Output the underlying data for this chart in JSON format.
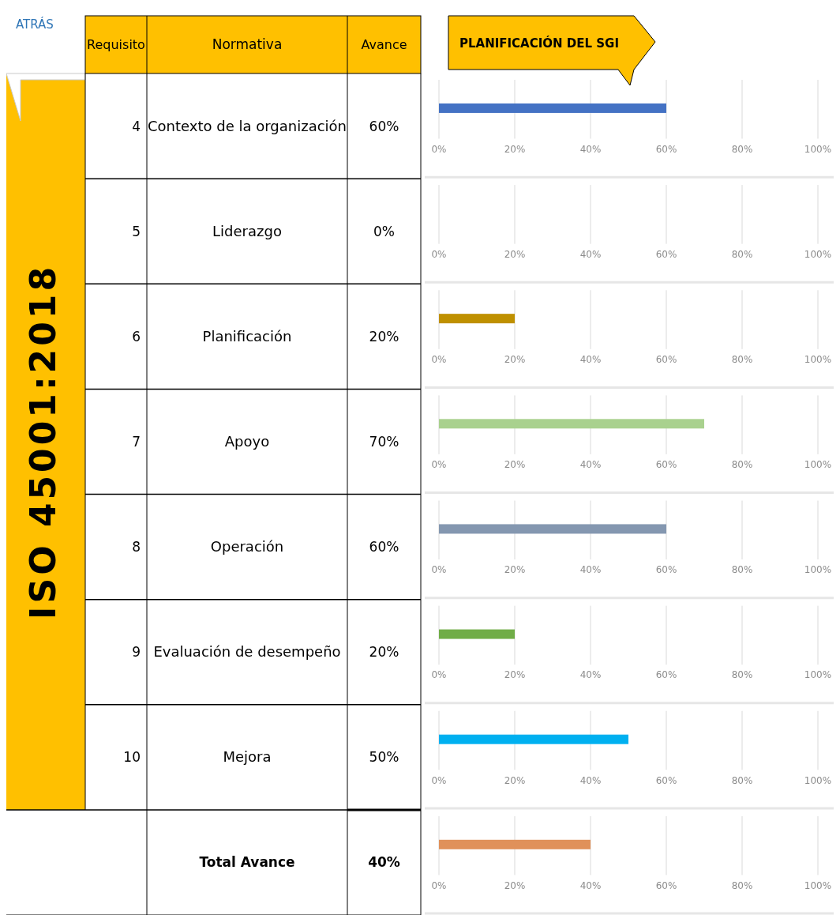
{
  "chart_data": {
    "type": "bar",
    "orientation": "horizontal",
    "title": "PLANIFICACIÓN DEL SGI",
    "subtitle": "ISO 45001:2018",
    "ylabel": "Normativa",
    "categories": [
      "Contexto de la organización",
      "Liderazgo",
      "Planificación",
      "Apoyo",
      "Operación",
      "Evaluación de desempeño",
      "Mejora",
      "Total Avance"
    ],
    "values": [
      60,
      0,
      20,
      70,
      60,
      20,
      50,
      40
    ],
    "colors": [
      "#4472c4",
      "#ed7d31",
      "#bf9000",
      "#a9d18e",
      "#8497b0",
      "#70ad47",
      "#00b0f0",
      "#e0915a"
    ],
    "value_labels": [
      "60%",
      "0%",
      "20%",
      "70%",
      "60%",
      "20%",
      "50%",
      "40%"
    ],
    "xlim": [
      0,
      100
    ],
    "xticks": [
      {
        "value": 0,
        "label": "0%"
      },
      {
        "value": 20,
        "label": "20%"
      },
      {
        "value": 40,
        "label": "40%"
      },
      {
        "value": 60,
        "label": "60%"
      },
      {
        "value": 80,
        "label": "80%"
      },
      {
        "value": 100,
        "label": "100%"
      }
    ],
    "grid": "x",
    "annotations": [
      "ATRÁS",
      "Requisito",
      "Avance",
      "4",
      "5",
      "6",
      "7",
      "8",
      "9",
      "10"
    ]
  }
}
